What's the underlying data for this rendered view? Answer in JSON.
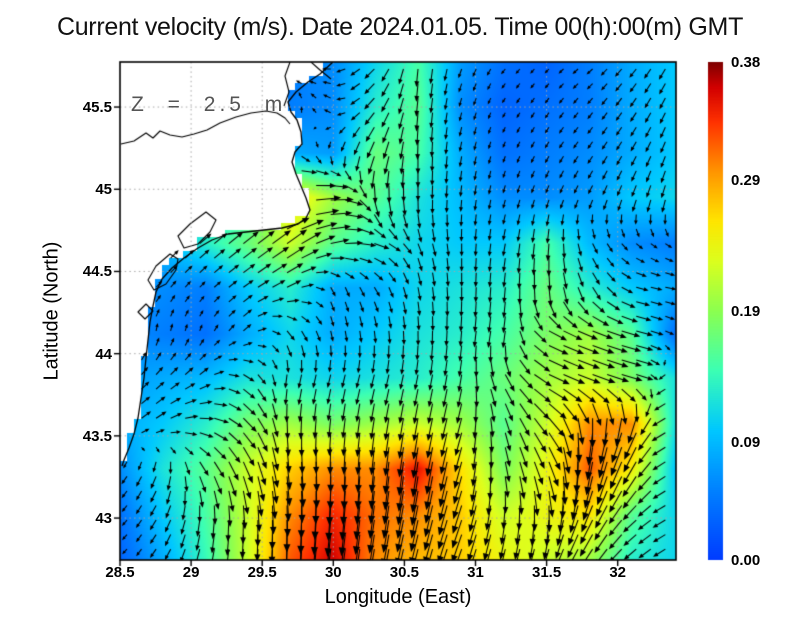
{
  "chart_data": {
    "type": "heatmap",
    "subtype": "vector-field-current-map",
    "title": "Current velocity (m/s). Date 2024.01.05. Time 00(h):00(m) GMT",
    "annotation": "Z = 2.5 m",
    "xlabel": "Longitude (East)",
    "ylabel": "Latitude (North)",
    "xlim": [
      28.5,
      32.41
    ],
    "ylim": [
      42.745,
      45.774
    ],
    "grid": true,
    "x_ticks": {
      "labels": [
        "28.5",
        "29",
        "29.5",
        "30",
        "30.5",
        "31",
        "31.5",
        "32"
      ],
      "values": [
        28.5,
        29,
        29.5,
        30,
        30.5,
        31,
        31.5,
        32
      ]
    },
    "y_ticks": {
      "labels": [
        "45.5",
        "45",
        "44.5",
        "44",
        "43.5",
        "43"
      ],
      "values": [
        45.5,
        45,
        44.5,
        44,
        43.5,
        43
      ]
    },
    "colorbar": {
      "min": 0.0,
      "max": 0.38,
      "tick_labels": [
        "0.38",
        "0.29",
        "0.19",
        "0.09",
        "0.00"
      ],
      "tick_values": [
        0.38,
        0.29,
        0.19,
        0.09,
        0.0
      ],
      "colormap_stops": [
        [
          0.0,
          "#003cff"
        ],
        [
          0.14,
          "#0082ff"
        ],
        [
          0.26,
          "#00c8ff"
        ],
        [
          0.38,
          "#3cffb4"
        ],
        [
          0.5,
          "#8cff50"
        ],
        [
          0.6,
          "#dcff1e"
        ],
        [
          0.68,
          "#ffe600"
        ],
        [
          0.78,
          "#ff9600"
        ],
        [
          0.88,
          "#ff3200"
        ],
        [
          0.95,
          "#d20000"
        ],
        [
          1.0,
          "#7f0000"
        ]
      ]
    },
    "field": {
      "units": "m/s",
      "lons": [
        28.5,
        28.8,
        29.1,
        29.4,
        29.7,
        30.0,
        30.3,
        30.6,
        30.9,
        31.2,
        31.5,
        31.8,
        32.1,
        32.4
      ],
      "lats": [
        45.77,
        45.5,
        45.22,
        44.95,
        44.67,
        44.4,
        44.12,
        43.85,
        43.57,
        43.3,
        43.02,
        42.75
      ],
      "magnitude": [
        [
          0.05,
          0.05,
          0.05,
          0.05,
          0.05,
          0.06,
          0.11,
          0.15,
          0.07,
          0.04,
          0.03,
          0.05,
          0.08,
          0.1
        ],
        [
          0.05,
          0.05,
          0.05,
          0.05,
          0.05,
          0.06,
          0.13,
          0.16,
          0.06,
          0.03,
          0.04,
          0.05,
          0.08,
          0.1
        ],
        [
          0.06,
          0.06,
          0.06,
          0.07,
          0.08,
          0.07,
          0.17,
          0.15,
          0.08,
          0.04,
          0.05,
          0.06,
          0.08,
          0.1
        ],
        [
          0.1,
          0.1,
          0.11,
          0.14,
          0.26,
          0.2,
          0.16,
          0.12,
          0.09,
          0.06,
          0.06,
          0.07,
          0.1,
          0.11
        ],
        [
          0.08,
          0.09,
          0.13,
          0.17,
          0.22,
          0.16,
          0.13,
          0.11,
          0.1,
          0.1,
          0.15,
          0.09,
          0.06,
          0.05
        ],
        [
          0.07,
          0.06,
          0.05,
          0.1,
          0.13,
          0.08,
          0.08,
          0.11,
          0.12,
          0.13,
          0.17,
          0.13,
          0.1,
          0.08
        ],
        [
          0.06,
          0.05,
          0.04,
          0.08,
          0.11,
          0.08,
          0.1,
          0.12,
          0.13,
          0.15,
          0.18,
          0.2,
          0.16,
          0.04
        ],
        [
          0.07,
          0.08,
          0.09,
          0.12,
          0.12,
          0.11,
          0.12,
          0.13,
          0.15,
          0.17,
          0.2,
          0.22,
          0.18,
          0.12
        ],
        [
          0.08,
          0.1,
          0.13,
          0.18,
          0.2,
          0.18,
          0.2,
          0.22,
          0.2,
          0.16,
          0.22,
          0.3,
          0.3,
          0.12
        ],
        [
          0.06,
          0.12,
          0.16,
          0.22,
          0.27,
          0.3,
          0.3,
          0.35,
          0.26,
          0.18,
          0.24,
          0.32,
          0.25,
          0.1
        ],
        [
          0.04,
          0.1,
          0.15,
          0.22,
          0.3,
          0.34,
          0.31,
          0.3,
          0.27,
          0.22,
          0.24,
          0.26,
          0.16,
          0.11
        ],
        [
          0.03,
          0.08,
          0.14,
          0.22,
          0.32,
          0.36,
          0.3,
          0.28,
          0.27,
          0.24,
          0.22,
          0.2,
          0.13,
          0.11
        ]
      ],
      "direction_deg_ccw_from_east": [
        [
          190,
          190,
          190,
          190,
          190,
          185,
          225,
          265,
          250,
          230,
          225,
          220,
          230,
          240
        ],
        [
          120,
          120,
          120,
          110,
          80,
          150,
          230,
          265,
          255,
          240,
          235,
          230,
          235,
          245
        ],
        [
          90,
          90,
          95,
          100,
          330,
          265,
          250,
          270,
          260,
          250,
          240,
          235,
          240,
          250
        ],
        [
          30,
          30,
          20,
          10,
          10,
          0,
          280,
          270,
          265,
          255,
          250,
          245,
          250,
          255
        ],
        [
          45,
          45,
          40,
          38,
          35,
          10,
          340,
          290,
          270,
          260,
          265,
          295,
          320,
          330
        ],
        [
          30,
          50,
          45,
          35,
          25,
          290,
          300,
          280,
          270,
          265,
          275,
          300,
          345,
          350
        ],
        [
          85,
          80,
          70,
          40,
          300,
          280,
          275,
          270,
          265,
          260,
          335,
          340,
          345,
          325
        ],
        [
          50,
          45,
          35,
          320,
          255,
          255,
          255,
          258,
          260,
          300,
          335,
          340,
          345,
          195
        ],
        [
          40,
          30,
          350,
          310,
          270,
          265,
          262,
          260,
          255,
          285,
          310,
          265,
          250,
          185
        ],
        [
          230,
          250,
          300,
          290,
          275,
          270,
          265,
          262,
          255,
          280,
          290,
          260,
          240,
          195
        ],
        [
          225,
          240,
          265,
          270,
          270,
          265,
          262,
          258,
          252,
          262,
          268,
          245,
          225,
          205
        ],
        [
          220,
          235,
          255,
          265,
          268,
          262,
          260,
          255,
          250,
          255,
          250,
          235,
          220,
          210
        ]
      ]
    },
    "coastline": {
      "units": "plot_px",
      "land_boundary": [
        [
          213,
          0
        ],
        [
          200,
          12
        ],
        [
          188,
          20
        ],
        [
          176,
          30
        ],
        [
          168,
          40
        ],
        [
          171,
          50
        ],
        [
          177,
          58
        ],
        [
          181,
          70
        ],
        [
          182,
          82
        ],
        [
          175,
          90
        ],
        [
          172,
          100
        ],
        [
          176,
          112
        ],
        [
          181,
          124
        ],
        [
          186,
          136
        ],
        [
          190,
          148
        ],
        [
          186,
          156
        ],
        [
          178,
          162
        ],
        [
          162,
          166
        ],
        [
          144,
          168
        ],
        [
          126,
          170
        ],
        [
          108,
          172
        ],
        [
          92,
          178
        ],
        [
          78,
          186
        ],
        [
          64,
          196
        ],
        [
          52,
          206
        ],
        [
          42,
          217
        ],
        [
          36,
          230
        ],
        [
          33,
          244
        ],
        [
          30,
          260
        ],
        [
          28,
          278
        ],
        [
          26,
          296
        ],
        [
          24,
          316
        ],
        [
          21,
          336
        ],
        [
          18,
          356
        ],
        [
          14,
          372
        ],
        [
          9,
          386
        ],
        [
          4,
          398
        ],
        [
          2,
          404
        ]
      ],
      "closure": [
        [
          0,
          404
        ],
        [
          0,
          0
        ]
      ],
      "inland_contours": [
        {
          "closed": false,
          "points": [
            [
              1,
              82
            ],
            [
              14,
              79
            ],
            [
              26,
              71
            ],
            [
              33,
              76
            ],
            [
              40,
              69
            ],
            [
              50,
              73
            ],
            [
              62,
              75
            ],
            [
              74,
              72
            ],
            [
              87,
              68
            ],
            [
              100,
              61
            ],
            [
              116,
              55
            ],
            [
              131,
              51
            ],
            [
              146,
              49
            ],
            [
              157,
              51
            ],
            [
              165,
              56
            ],
            [
              170,
              62
            ]
          ]
        },
        {
          "closed": false,
          "points": [
            [
              170,
              0
            ],
            [
              165,
              14
            ],
            [
              169,
              30
            ],
            [
              164,
              44
            ]
          ]
        },
        {
          "closed": false,
          "points": [
            [
              191,
              0
            ],
            [
              200,
              8
            ],
            [
              211,
              17
            ]
          ]
        },
        {
          "closed": true,
          "points": [
            [
              86,
              150
            ],
            [
              70,
              162
            ],
            [
              58,
              174
            ],
            [
              64,
              186
            ],
            [
              78,
              182
            ],
            [
              90,
              170
            ],
            [
              96,
              158
            ]
          ]
        },
        {
          "closed": true,
          "points": [
            [
              50,
              192
            ],
            [
              36,
              204
            ],
            [
              28,
              218
            ],
            [
              34,
              228
            ],
            [
              46,
              222
            ],
            [
              56,
              208
            ],
            [
              58,
              197
            ]
          ]
        },
        {
          "closed": true,
          "points": [
            [
              26,
              242
            ],
            [
              18,
              250
            ],
            [
              25,
              257
            ],
            [
              33,
              249
            ]
          ]
        }
      ]
    }
  }
}
